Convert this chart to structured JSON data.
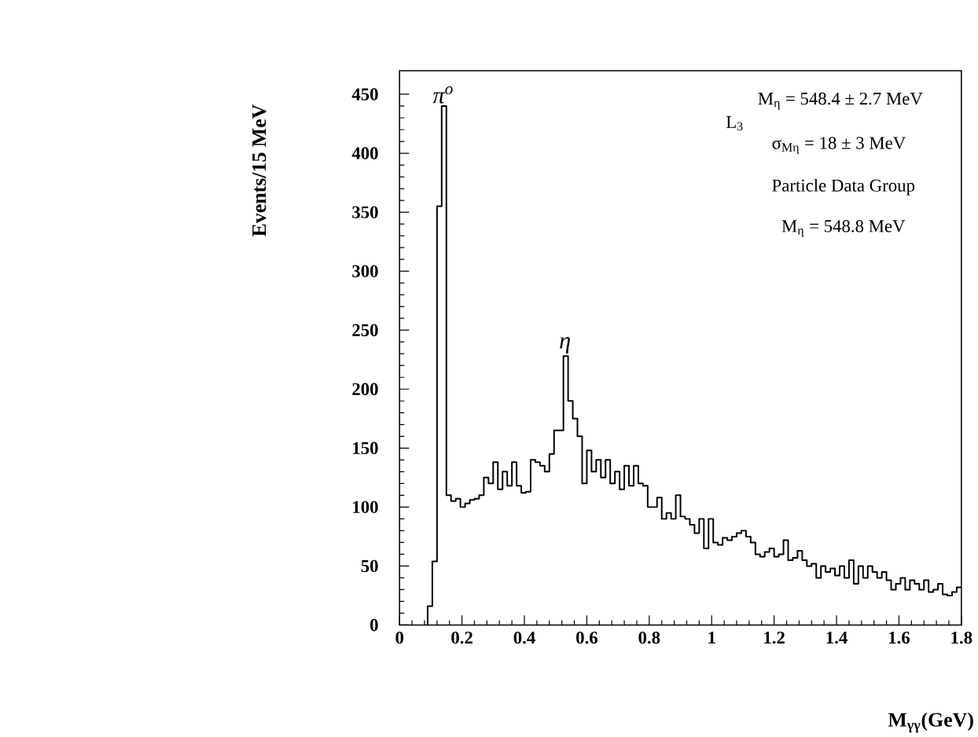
{
  "chart_data": {
    "type": "histogram",
    "xlabel": "M$_{γγ}$(GeV)",
    "ylabel": "Events/15 MeV",
    "bins": [
      0.09,
      0.105,
      0.12,
      0.135,
      0.15,
      0.165,
      0.18,
      0.195,
      0.21,
      0.225,
      0.24,
      0.255,
      0.27,
      0.285,
      0.3,
      0.315,
      0.33,
      0.345,
      0.36,
      0.375,
      0.39,
      0.405,
      0.42,
      0.435,
      0.45,
      0.465,
      0.48,
      0.495,
      0.51,
      0.525,
      0.54,
      0.555,
      0.57,
      0.585,
      0.6,
      0.615,
      0.63,
      0.645,
      0.66,
      0.675,
      0.69,
      0.705,
      0.72,
      0.735,
      0.75,
      0.765,
      0.78,
      0.795,
      0.81,
      0.825,
      0.84,
      0.855,
      0.87,
      0.885,
      0.9,
      0.915,
      0.93,
      0.945,
      0.96,
      0.975,
      0.99,
      1.005,
      1.02,
      1.035,
      1.05,
      1.065,
      1.08,
      1.095,
      1.11,
      1.125,
      1.14,
      1.155,
      1.17,
      1.185,
      1.2,
      1.215,
      1.23,
      1.245,
      1.26,
      1.275,
      1.29,
      1.305,
      1.32,
      1.335,
      1.35,
      1.365,
      1.38,
      1.395,
      1.41,
      1.425,
      1.44,
      1.455,
      1.47,
      1.485,
      1.5,
      1.515,
      1.53,
      1.545,
      1.56,
      1.575,
      1.59,
      1.605,
      1.62,
      1.635,
      1.65,
      1.665,
      1.68,
      1.695,
      1.71,
      1.725,
      1.74,
      1.755,
      1.77,
      1.785,
      1.8
    ],
    "values": [
      16,
      54,
      355,
      440,
      110,
      105,
      107,
      100,
      103,
      106,
      107,
      110,
      125,
      120,
      138,
      115,
      130,
      118,
      138,
      118,
      112,
      113,
      140,
      138,
      135,
      130,
      145,
      165,
      165,
      228,
      190,
      175,
      160,
      120,
      148,
      130,
      140,
      125,
      140,
      120,
      130,
      115,
      135,
      118,
      135,
      120,
      118,
      100,
      100,
      108,
      90,
      95,
      90,
      110,
      92,
      90,
      85,
      78,
      90,
      65,
      90,
      70,
      68,
      74,
      72,
      75,
      78,
      80,
      75,
      70,
      60,
      58,
      62,
      65,
      58,
      60,
      72,
      55,
      57,
      63,
      55,
      50,
      52,
      40,
      50,
      45,
      48,
      42,
      50,
      40,
      55,
      35,
      50,
      40,
      50,
      45,
      40,
      45,
      38,
      30,
      35,
      40,
      30,
      38,
      35,
      30,
      38,
      28,
      30,
      35,
      26,
      25,
      28,
      32
    ],
    "color": "#000000",
    "xlim": [
      0,
      1.8
    ],
    "ylim": [
      0,
      470
    ],
    "xticks": [
      0,
      0.2,
      0.4,
      0.6,
      0.8,
      1,
      1.2,
      1.4,
      1.6,
      1.8
    ],
    "yticks": [
      0,
      50,
      100,
      150,
      200,
      250,
      300,
      350,
      400,
      450
    ],
    "annotations": [
      {
        "text": "π$^{o}$",
        "x": 0.14,
        "y": 440
      },
      {
        "text": "η",
        "x": 0.53,
        "y": 228
      },
      "L$_{3}$",
      "M$_{η}$ = 548.4 ± 2.7 MeV",
      "σ$_{Mη}$ = 18 ± 3 MeV",
      "Particle Data Group",
      "M$_{η}$ = 548.8 MeV"
    ],
    "grid": false
  }
}
